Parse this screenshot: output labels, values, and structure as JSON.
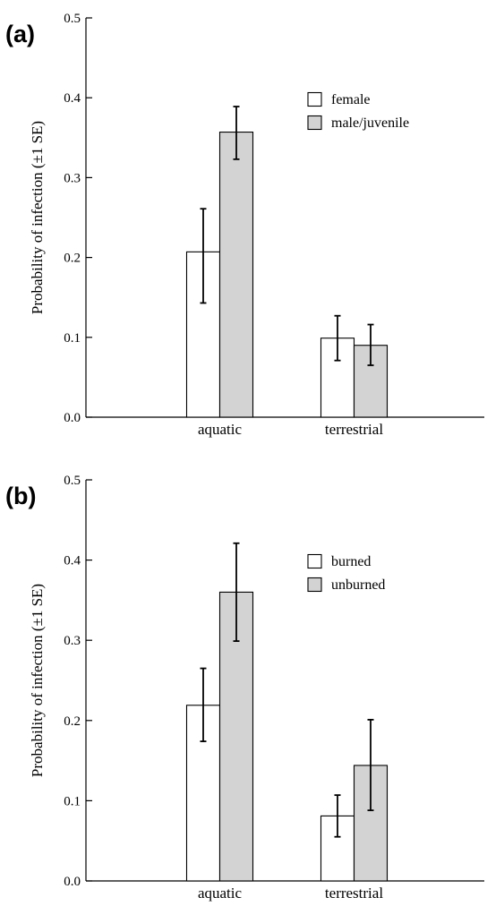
{
  "chart_data": [
    {
      "type": "bar",
      "panel_label": "(a)",
      "ylabel": "Probability of infection (±1 SE)",
      "xlabel": "",
      "categories": [
        "aquatic",
        "terrestrial"
      ],
      "ylim": [
        0,
        0.5
      ],
      "yticks": [
        "0.0",
        "0.1",
        "0.2",
        "0.3",
        "0.4",
        "0.5"
      ],
      "grid": false,
      "legend_position": "top-right",
      "series": [
        {
          "name": "female",
          "color": "#ffffff",
          "values": [
            0.207,
            0.099
          ],
          "se_low": [
            0.143,
            0.071
          ],
          "se_high": [
            0.261,
            0.127
          ]
        },
        {
          "name": "male/juvenile",
          "color": "#d3d3d3",
          "values": [
            0.357,
            0.09
          ],
          "se_low": [
            0.323,
            0.065
          ],
          "se_high": [
            0.389,
            0.116
          ]
        }
      ]
    },
    {
      "type": "bar",
      "panel_label": "(b)",
      "ylabel": "Probability of infection (±1 SE)",
      "xlabel": "",
      "categories": [
        "aquatic",
        "terrestrial"
      ],
      "ylim": [
        0,
        0.5
      ],
      "yticks": [
        "0.0",
        "0.1",
        "0.2",
        "0.3",
        "0.4",
        "0.5"
      ],
      "grid": false,
      "legend_position": "top-right",
      "series": [
        {
          "name": "burned",
          "color": "#ffffff",
          "values": [
            0.219,
            0.081
          ],
          "se_low": [
            0.174,
            0.055
          ],
          "se_high": [
            0.265,
            0.107
          ]
        },
        {
          "name": "unburned",
          "color": "#d3d3d3",
          "values": [
            0.36,
            0.144
          ],
          "se_low": [
            0.299,
            0.088
          ],
          "se_high": [
            0.421,
            0.201
          ]
        }
      ]
    }
  ]
}
